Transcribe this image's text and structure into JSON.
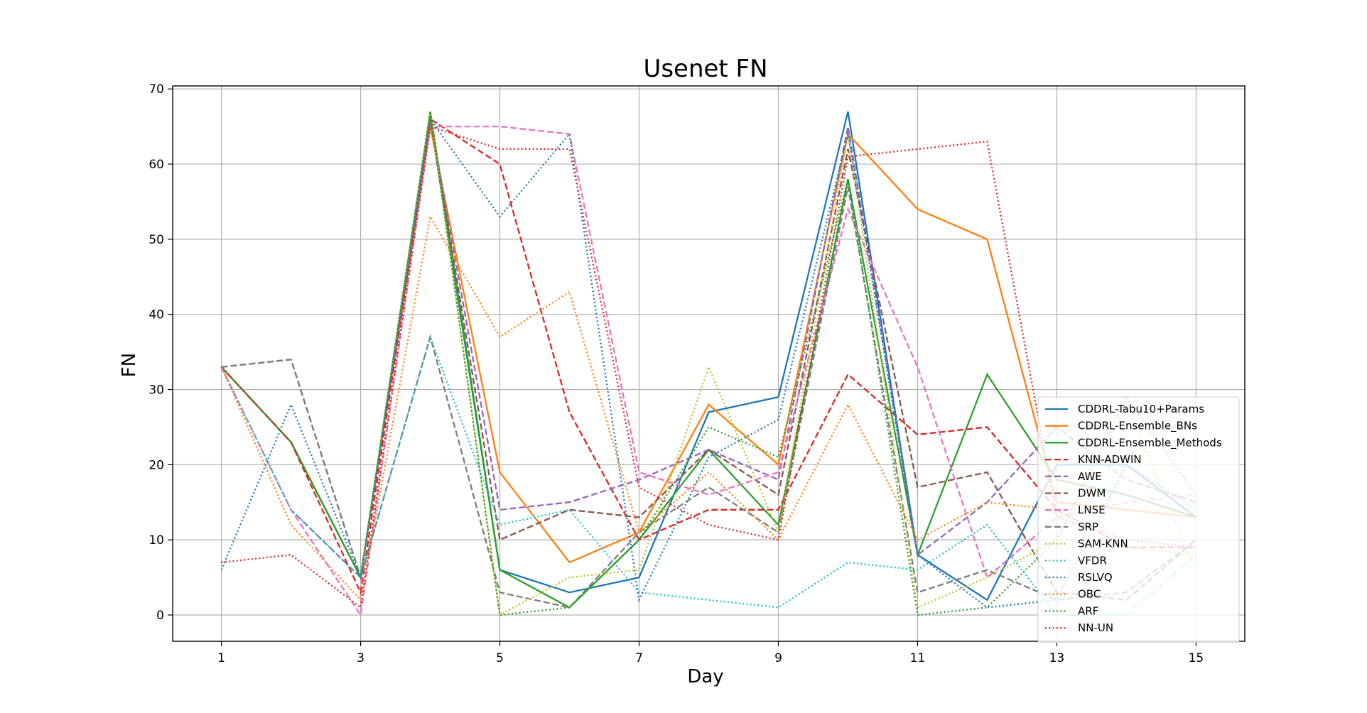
{
  "chart_data": {
    "type": "line",
    "title": "Usenet FN",
    "xlabel": "Day",
    "ylabel": "FN",
    "xlim": [
      0.3,
      15.7
    ],
    "ylim": [
      -3.5,
      70.4
    ],
    "xticks": [
      1,
      3,
      5,
      7,
      9,
      11,
      13,
      15
    ],
    "yticks": [
      0,
      10,
      20,
      30,
      40,
      50,
      60,
      70
    ],
    "grid": true,
    "legend_position": "lower-right",
    "x": [
      1,
      2,
      3,
      4,
      5,
      6,
      7,
      8,
      9,
      10,
      11,
      12,
      13,
      14,
      15
    ],
    "series": [
      {
        "name": "CDDRL-Tabu10+Params",
        "color": "#1f77b4",
        "style": "solid",
        "values": [
          33,
          23,
          5,
          66,
          6,
          3,
          5,
          27,
          29,
          67,
          8,
          2,
          20,
          20,
          13
        ]
      },
      {
        "name": "CDDRL-Ensemble_BNs",
        "color": "#ff7f0e",
        "style": "solid",
        "values": [
          33,
          23,
          5,
          65,
          19,
          7,
          11,
          28,
          20,
          64,
          54,
          50,
          15,
          14,
          13
        ]
      },
      {
        "name": "CDDRL-Ensemble_Methods",
        "color": "#2ca02c",
        "style": "solid",
        "values": [
          33,
          23,
          5,
          67,
          6,
          1,
          10,
          22,
          12,
          58,
          8,
          32,
          18,
          16,
          13
        ]
      },
      {
        "name": "KNN-ADWIN",
        "color": "#d62728",
        "style": "dashed",
        "values": [
          33,
          23,
          3,
          66,
          60,
          27,
          10,
          14,
          14,
          32,
          24,
          25,
          14,
          9,
          9
        ]
      },
      {
        "name": "AWE",
        "color": "#9467bd",
        "style": "dashed",
        "values": [
          33,
          14,
          5,
          66,
          14,
          15,
          18,
          22,
          18,
          65,
          8,
          15,
          25,
          18,
          15
        ]
      },
      {
        "name": "DWM",
        "color": "#8c564b",
        "style": "dashed",
        "values": [
          33,
          34,
          5,
          66,
          10,
          14,
          13,
          22,
          16,
          62,
          17,
          19,
          3,
          2,
          10
        ]
      },
      {
        "name": "LNSE",
        "color": "#e377c2",
        "style": "dashed",
        "values": [
          33,
          14,
          0,
          65,
          65,
          64,
          19,
          16,
          19,
          54,
          33,
          5,
          13,
          15,
          16
        ]
      },
      {
        "name": "SRP",
        "color": "#7f7f7f",
        "style": "dashed",
        "values": [
          33,
          34,
          5,
          37,
          3,
          1,
          11,
          17,
          11,
          57,
          3,
          6,
          2,
          3,
          10
        ]
      },
      {
        "name": "SAM-KNN",
        "color": "#bcbd22",
        "style": "dotted",
        "values": [
          33,
          14,
          5,
          67,
          0,
          5,
          6,
          33,
          11,
          64,
          1,
          5,
          10,
          28,
          6
        ]
      },
      {
        "name": "VFDR",
        "color": "#17becf",
        "style": "dotted",
        "values": [
          33,
          14,
          5,
          37,
          12,
          14,
          3,
          2,
          1,
          7,
          6,
          12,
          0,
          0,
          8
        ]
      },
      {
        "name": "RSLVQ",
        "color": "#1f77b4",
        "style": "dotted",
        "values": [
          6,
          28,
          5,
          66,
          53,
          64,
          2,
          21,
          26,
          64,
          8,
          1,
          2,
          20,
          14
        ]
      },
      {
        "name": "OBC",
        "color": "#ff7f0e",
        "style": "dotted",
        "values": [
          33,
          12,
          2,
          53,
          37,
          43,
          11,
          19,
          10,
          28,
          10,
          15,
          14,
          9,
          8
        ]
      },
      {
        "name": "ARF",
        "color": "#2ca02c",
        "style": "dotted",
        "values": [
          33,
          23,
          5,
          67,
          0,
          1,
          10,
          25,
          21,
          58,
          0,
          1,
          10,
          29,
          16
        ]
      },
      {
        "name": "NN-UN",
        "color": "#d62728",
        "style": "dotted",
        "values": [
          7,
          8,
          1,
          65,
          62,
          62,
          17,
          12,
          10,
          61,
          62,
          63,
          13,
          10,
          9
        ]
      }
    ]
  }
}
